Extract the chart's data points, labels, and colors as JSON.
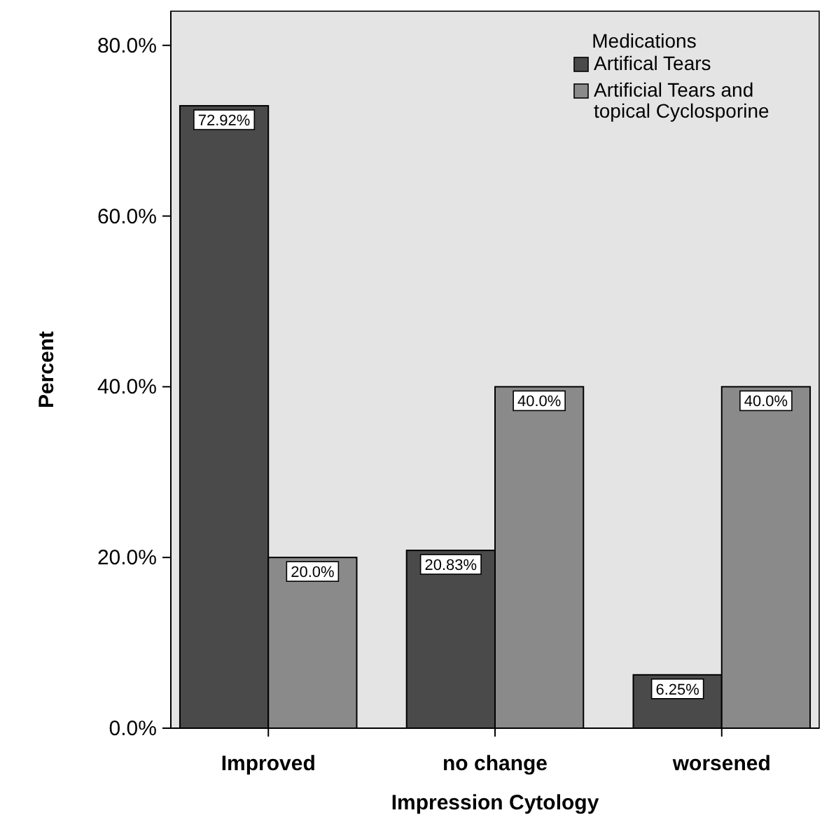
{
  "chart_data": {
    "type": "bar",
    "xlabel": "Impression Cytology",
    "ylabel": "Percent",
    "legend_title": "Medications",
    "legend": "top right",
    "categories": [
      "Improved",
      "no change",
      "worsened"
    ],
    "ylim": [
      0,
      84
    ],
    "yticks": [
      {
        "value": 0,
        "label": "0.0%"
      },
      {
        "value": 20,
        "label": "20.0%"
      },
      {
        "value": 40,
        "label": "40.0%"
      },
      {
        "value": 60,
        "label": "60.0%"
      },
      {
        "value": 80,
        "label": "80.0%"
      }
    ],
    "grid": false,
    "series": [
      {
        "name": "Artifical Tears",
        "color": "#4a4a4a",
        "values": [
          72.92,
          20.83,
          6.25
        ],
        "value_labels": [
          "72.92%",
          "20.83%",
          "6.25%"
        ]
      },
      {
        "name": "Artificial Tears and topical Cyclosporine",
        "color": "#8a8a8a",
        "values": [
          20.0,
          40.0,
          40.0
        ],
        "value_labels": [
          "20.0%",
          "40.0%",
          "40.0%"
        ]
      }
    ]
  }
}
